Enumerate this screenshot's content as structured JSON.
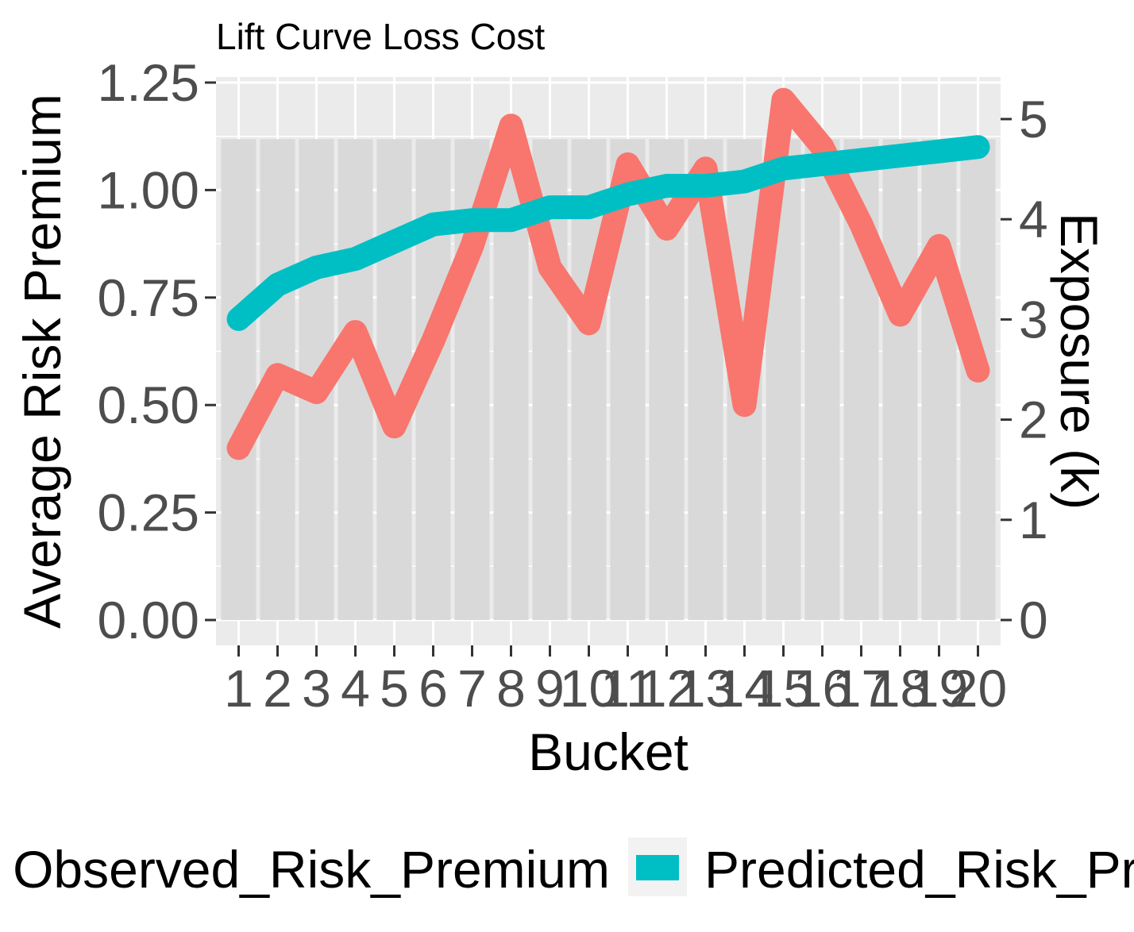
{
  "chart_data": {
    "type": "line",
    "title": "Lift Curve Loss Cost",
    "xlabel": "Bucket",
    "ylabel": "Average Risk Premium",
    "y2label": "Exposure (k)",
    "categories": [
      "1",
      "2",
      "3",
      "4",
      "5",
      "6",
      "7",
      "8",
      "9",
      "10",
      "11",
      "12",
      "13",
      "14",
      "15",
      "16",
      "17",
      "18",
      "19",
      "20"
    ],
    "ylim": [
      0,
      1.25
    ],
    "yticks": [
      "0.00",
      "0.25",
      "0.50",
      "0.75",
      "1.00",
      "1.25"
    ],
    "y2lim": [
      0,
      5.2
    ],
    "y2ticks": [
      "0",
      "1",
      "2",
      "3",
      "4",
      "5"
    ],
    "exposure_bars": [
      4.8,
      4.8,
      4.8,
      4.8,
      4.8,
      4.8,
      4.8,
      4.8,
      4.8,
      4.8,
      4.8,
      4.8,
      4.8,
      4.8,
      4.8,
      4.8,
      4.8,
      4.8,
      4.8,
      4.8
    ],
    "series": [
      {
        "name": "Observed_Risk_Premium",
        "color": "#F8766D",
        "values": [
          0.4,
          0.57,
          0.53,
          0.67,
          0.45,
          0.65,
          0.87,
          1.15,
          0.82,
          0.69,
          1.06,
          0.91,
          1.05,
          0.5,
          1.21,
          1.1,
          0.92,
          0.71,
          0.87,
          0.58
        ]
      },
      {
        "name": "Predicted_Risk_Premium",
        "color": "#00BFC4",
        "values": [
          0.7,
          0.78,
          0.82,
          0.84,
          0.88,
          0.92,
          0.93,
          0.93,
          0.96,
          0.96,
          0.99,
          1.01,
          1.01,
          1.02,
          1.05,
          1.06,
          1.07,
          1.08,
          1.09,
          1.1
        ]
      }
    ],
    "legend_position": "bottom",
    "grid": true
  }
}
